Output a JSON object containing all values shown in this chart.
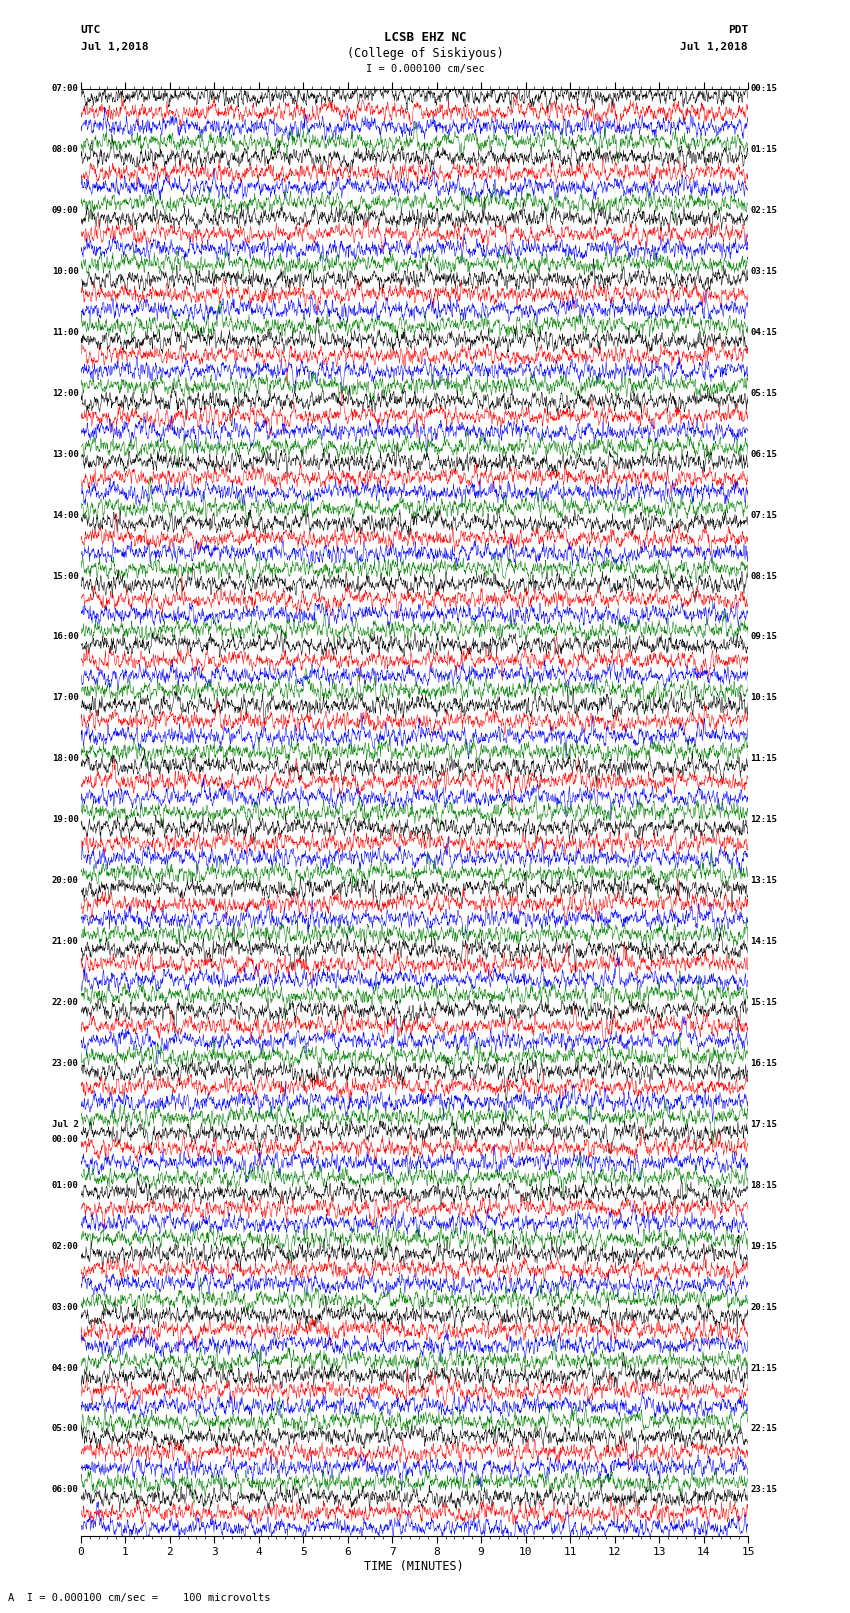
{
  "title_line1": "LCSB EHZ NC",
  "title_line2": "(College of Siskiyous)",
  "scale_text": "I = 0.000100 cm/sec",
  "bottom_label": "A  I = 0.000100 cm/sec =    100 microvolts",
  "xlabel": "TIME (MINUTES)",
  "utc_line1": "UTC",
  "utc_line2": "Jul 1,2018",
  "pdt_line1": "PDT",
  "pdt_line2": "Jul 1,2018",
  "left_times": [
    "07:00",
    "",
    "",
    "",
    "08:00",
    "",
    "",
    "",
    "09:00",
    "",
    "",
    "",
    "10:00",
    "",
    "",
    "",
    "11:00",
    "",
    "",
    "",
    "12:00",
    "",
    "",
    "",
    "13:00",
    "",
    "",
    "",
    "14:00",
    "",
    "",
    "",
    "15:00",
    "",
    "",
    "",
    "16:00",
    "",
    "",
    "",
    "17:00",
    "",
    "",
    "",
    "18:00",
    "",
    "",
    "",
    "19:00",
    "",
    "",
    "",
    "20:00",
    "",
    "",
    "",
    "21:00",
    "",
    "",
    "",
    "22:00",
    "",
    "",
    "",
    "23:00",
    "",
    "",
    "",
    "Jul 2",
    "00:00",
    "",
    "",
    "01:00",
    "",
    "",
    "",
    "02:00",
    "",
    "",
    "",
    "03:00",
    "",
    "",
    "",
    "04:00",
    "",
    "",
    "",
    "05:00",
    "",
    "",
    "",
    "06:00",
    "",
    ""
  ],
  "right_times": [
    "00:15",
    "",
    "",
    "",
    "01:15",
    "",
    "",
    "",
    "02:15",
    "",
    "",
    "",
    "03:15",
    "",
    "",
    "",
    "04:15",
    "",
    "",
    "",
    "05:15",
    "",
    "",
    "",
    "06:15",
    "",
    "",
    "",
    "07:15",
    "",
    "",
    "",
    "08:15",
    "",
    "",
    "",
    "09:15",
    "",
    "",
    "",
    "10:15",
    "",
    "",
    "",
    "11:15",
    "",
    "",
    "",
    "12:15",
    "",
    "",
    "",
    "13:15",
    "",
    "",
    "",
    "14:15",
    "",
    "",
    "",
    "15:15",
    "",
    "",
    "",
    "16:15",
    "",
    "",
    "",
    "17:15",
    "",
    "",
    "",
    "18:15",
    "",
    "",
    "",
    "19:15",
    "",
    "",
    "",
    "20:15",
    "",
    "",
    "",
    "21:15",
    "",
    "",
    "",
    "22:15",
    "",
    "",
    "",
    "23:15",
    "",
    ""
  ],
  "trace_colors": [
    "black",
    "red",
    "blue",
    "green"
  ],
  "num_rows": 95,
  "xlim": [
    0,
    15
  ],
  "xticks": [
    0,
    1,
    2,
    3,
    4,
    5,
    6,
    7,
    8,
    9,
    10,
    11,
    12,
    13,
    14,
    15
  ],
  "bg_color": "white",
  "trace_linewidth": 0.35,
  "fig_width": 8.5,
  "fig_height": 16.13,
  "dpi": 100,
  "amplitude_scale": 0.003,
  "seed": 42,
  "n_points": 2000
}
